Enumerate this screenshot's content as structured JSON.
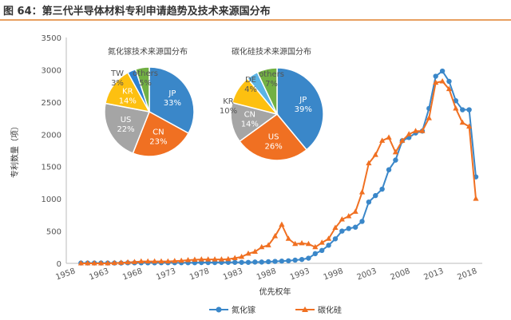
{
  "title": "图 64：第三代半导体材料专利申请趋势及技术来源国分布",
  "chart_data": [
    {
      "type": "line",
      "xlabel": "优先权年",
      "ylabel": "专利数量（项）",
      "ylim": [
        0,
        3500
      ],
      "yticks": [
        0,
        500,
        1000,
        1500,
        2000,
        2500,
        3000,
        3500
      ],
      "xticks": [
        1958,
        1963,
        1968,
        1973,
        1978,
        1983,
        1988,
        1993,
        1998,
        2003,
        2008,
        2013,
        2018
      ],
      "x": [
        1959,
        1960,
        1961,
        1962,
        1963,
        1964,
        1965,
        1966,
        1967,
        1968,
        1969,
        1970,
        1971,
        1972,
        1973,
        1974,
        1975,
        1976,
        1977,
        1978,
        1979,
        1980,
        1981,
        1982,
        1983,
        1984,
        1985,
        1986,
        1987,
        1988,
        1989,
        1990,
        1991,
        1992,
        1993,
        1994,
        1995,
        1996,
        1997,
        1998,
        1999,
        2000,
        2001,
        2002,
        2003,
        2004,
        2005,
        2006,
        2007,
        2008,
        2009,
        2010,
        2011,
        2012,
        2013,
        2014,
        2015,
        2016,
        2017,
        2018
      ],
      "series": [
        {
          "name": "氮化镓",
          "color": "#3a87c9",
          "marker": "circle",
          "values": [
            5,
            5,
            5,
            5,
            5,
            5,
            5,
            8,
            8,
            8,
            8,
            8,
            10,
            10,
            10,
            10,
            10,
            10,
            12,
            12,
            12,
            15,
            15,
            15,
            15,
            15,
            20,
            20,
            25,
            30,
            35,
            40,
            50,
            60,
            80,
            150,
            200,
            280,
            380,
            500,
            540,
            560,
            650,
            950,
            1050,
            1150,
            1450,
            1600,
            1900,
            1950,
            2020,
            2050,
            2400,
            2900,
            2980,
            2820,
            2520,
            2380,
            2380,
            1340
          ]
        },
        {
          "name": "碳化硅",
          "color": "#f07022",
          "marker": "triangle",
          "values": [
            0,
            0,
            0,
            0,
            0,
            5,
            10,
            15,
            20,
            30,
            30,
            30,
            30,
            30,
            35,
            40,
            50,
            55,
            60,
            60,
            60,
            60,
            65,
            80,
            100,
            150,
            180,
            250,
            280,
            420,
            600,
            380,
            300,
            310,
            300,
            250,
            320,
            380,
            550,
            680,
            730,
            800,
            1100,
            1550,
            1680,
            1900,
            1950,
            1720,
            1900,
            2000,
            2050,
            2050,
            2250,
            2800,
            2820,
            2700,
            2400,
            2180,
            2120,
            1000
          ]
        }
      ]
    },
    {
      "type": "pie",
      "title": "氮化镓技术来源国分布",
      "slices": [
        {
          "label": "JP",
          "value": 33,
          "text": "33%",
          "color": "#3a87c9"
        },
        {
          "label": "CN",
          "value": 23,
          "text": "23%",
          "color": "#f07022"
        },
        {
          "label": "US",
          "value": 22,
          "text": "22%",
          "color": "#a5a5a5"
        },
        {
          "label": "KR",
          "value": 14,
          "text": "14%",
          "color": "#fdc010"
        },
        {
          "label": "TW",
          "value": 3,
          "text": "3%",
          "color": "#2e80d0"
        },
        {
          "label": "others",
          "value": 5,
          "text": "5%",
          "color": "#72b043"
        }
      ]
    },
    {
      "type": "pie",
      "title": "碳化硅技术来源国分布",
      "slices": [
        {
          "label": "JP",
          "value": 39,
          "text": "39%",
          "color": "#3a87c9"
        },
        {
          "label": "US",
          "value": 26,
          "text": "26%",
          "color": "#f07022"
        },
        {
          "label": "CN",
          "value": 14,
          "text": "14%",
          "color": "#a5a5a5"
        },
        {
          "label": "KR",
          "value": 10,
          "text": "10%",
          "color": "#fdc010"
        },
        {
          "label": "DE",
          "value": 4,
          "text": "4%",
          "color": "#5ab4e6"
        },
        {
          "label": "others",
          "value": 7,
          "text": "7%",
          "color": "#72b043"
        }
      ]
    }
  ]
}
